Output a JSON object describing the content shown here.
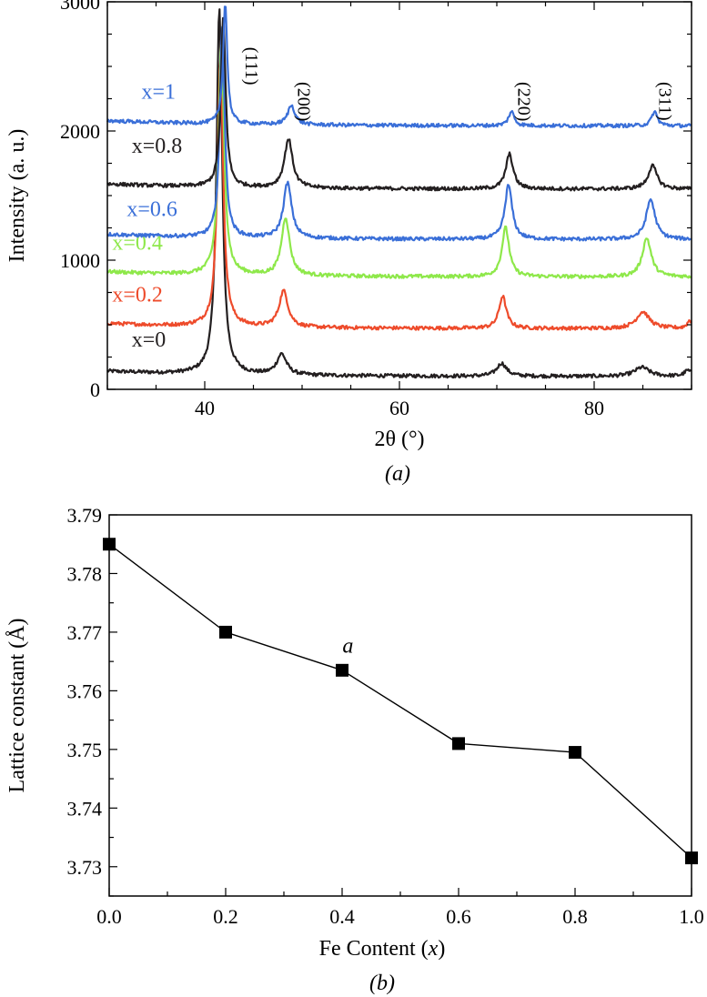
{
  "chart_data": [
    {
      "type": "line",
      "panel": "a",
      "caption": "(a)",
      "xlabel": "2θ (°)",
      "ylabel": "Intensity (a. u.)",
      "xlim": [
        30,
        90
      ],
      "ylim": [
        0,
        3000
      ],
      "xticks": [
        40,
        60,
        80
      ],
      "yticks": [
        0,
        1000,
        2000,
        3000
      ],
      "peak_positions": [
        42.0,
        48.5,
        71.0,
        85.5
      ],
      "peak_labels": [
        {
          "label": "(111)",
          "x": 44.2,
          "y": 2650
        },
        {
          "label": "(200)",
          "x": 49.6,
          "y": 2380
        },
        {
          "label": "(220)",
          "x": 72.2,
          "y": 2380
        },
        {
          "label": "(311)",
          "x": 86.7,
          "y": 2380
        }
      ],
      "series": [
        {
          "name": "x=0",
          "color": "#231f20",
          "baseline": 100,
          "label_x": 32.5,
          "label_y": 330,
          "peaks": [
            [
              41.5,
              2830,
              0.35
            ],
            [
              47.9,
              160,
              0.6
            ],
            [
              70.5,
              100,
              0.6
            ],
            [
              84.9,
              70,
              0.9
            ],
            [
              89.6,
              45,
              0.4
            ]
          ]
        },
        {
          "name": "x=0.2",
          "color": "#ee4b2b",
          "baseline": 470,
          "label_x": 30.5,
          "label_y": 680,
          "peaks": [
            [
              41.6,
              2080,
              0.35
            ],
            [
              48.1,
              280,
              0.55
            ],
            [
              70.6,
              250,
              0.45
            ],
            [
              85.0,
              130,
              0.8
            ],
            [
              89.8,
              60,
              0.3
            ]
          ]
        },
        {
          "name": "x=0.4",
          "color": "#8ee84a",
          "baseline": 870,
          "label_x": 30.5,
          "label_y": 1080,
          "peaks": [
            [
              41.7,
              1780,
              0.35
            ],
            [
              48.3,
              450,
              0.5
            ],
            [
              70.9,
              380,
              0.45
            ],
            [
              85.4,
              300,
              0.55
            ]
          ]
        },
        {
          "name": "x=0.6",
          "color": "#3a6fd8",
          "baseline": 1160,
          "label_x": 32.0,
          "label_y": 1340,
          "peaks": [
            [
              41.8,
              1640,
              0.3
            ],
            [
              48.5,
              430,
              0.5
            ],
            [
              71.2,
              420,
              0.45
            ],
            [
              85.8,
              310,
              0.55
            ]
          ]
        },
        {
          "name": "x=0.8",
          "color": "#231f20",
          "baseline": 1550,
          "label_x": 32.5,
          "label_y": 1830,
          "peaks": [
            [
              41.9,
              1310,
              0.3
            ],
            [
              48.6,
              380,
              0.5
            ],
            [
              71.3,
              270,
              0.45
            ],
            [
              86.0,
              180,
              0.55
            ]
          ]
        },
        {
          "name": "x=1",
          "color": "#3a6fd8",
          "baseline": 2040,
          "label_x": 33.5,
          "label_y": 2250,
          "peaks": [
            [
              42.1,
              940,
              0.25
            ],
            [
              48.9,
              150,
              0.45
            ],
            [
              71.5,
              110,
              0.35
            ],
            [
              86.2,
              110,
              0.35
            ]
          ]
        }
      ]
    },
    {
      "type": "line",
      "panel": "b",
      "caption": "(b)",
      "xlabel_main": "Fe Content (",
      "xlabel_var": "x",
      "xlabel_end": ")",
      "ylabel": "Lattice constant (Å)",
      "xlim": [
        0.0,
        1.0
      ],
      "ylim": [
        3.725,
        3.79
      ],
      "xticks": [
        "0.0",
        "0.2",
        "0.4",
        "0.6",
        "0.8",
        "1.0"
      ],
      "yticks": [
        "3.73",
        "3.74",
        "3.75",
        "3.76",
        "3.77",
        "3.78",
        "3.79"
      ],
      "annotation": {
        "text": "a",
        "x": 0.41,
        "y": 3.7665
      },
      "series": [
        {
          "name": "a",
          "color": "#000000",
          "x": [
            0.0,
            0.2,
            0.4,
            0.6,
            0.8,
            1.0
          ],
          "y": [
            3.785,
            3.77,
            3.7635,
            3.751,
            3.7495,
            3.7315
          ]
        }
      ]
    }
  ]
}
